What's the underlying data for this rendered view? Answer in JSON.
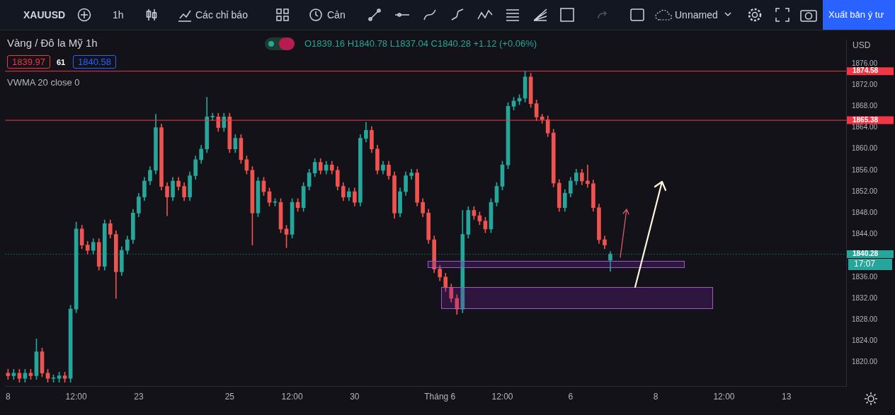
{
  "chart_data": {
    "type": "candlestick",
    "title": "Vàng / Đô la Mỹ  1h",
    "subtitle": "O1839.16 H1840.78 L1837.04 C1840.28 +1.12 (+0.06%)",
    "ylabel": "USD",
    "annotations": [
      "XAUUSD",
      "1h",
      "Các chỉ báo",
      "Cản",
      "Unnamed",
      "Xuất bản ý tư",
      "1839.97",
      "61",
      "1840.58",
      "VWMA 20 close 0",
      "17:07"
    ],
    "categories": [
      "8",
      null,
      null,
      null,
      null,
      null,
      null,
      null,
      null,
      null,
      null,
      null,
      "12:00",
      null,
      null,
      null,
      null,
      null,
      null,
      null,
      null,
      null,
      null,
      "23",
      null,
      null,
      null,
      null,
      null,
      null,
      null,
      null,
      null,
      null,
      null,
      null,
      null,
      null,
      null,
      "25",
      null,
      null,
      null,
      null,
      null,
      null,
      null,
      null,
      null,
      null,
      "12:00",
      null,
      null,
      null,
      null,
      null,
      null,
      null,
      null,
      null,
      null,
      "30",
      null,
      null,
      null,
      null,
      null,
      null,
      null,
      null,
      null,
      null,
      null,
      null,
      null,
      null,
      "Tháng 6",
      null,
      null,
      null,
      null,
      null,
      null,
      null,
      null,
      null,
      null,
      "12:00",
      null,
      null,
      null,
      null,
      null,
      null,
      null,
      null,
      null,
      null,
      null,
      "6",
      null,
      null,
      null,
      null,
      null,
      null,
      null,
      null,
      null,
      null,
      null,
      null,
      null,
      null,
      "8",
      null,
      null,
      null,
      null,
      null,
      null,
      null,
      null,
      null,
      null,
      null,
      "12:00",
      null,
      null,
      null,
      null,
      null,
      null,
      null,
      null,
      null,
      null,
      "13",
      null,
      null,
      null,
      null,
      null,
      null,
      null,
      null,
      null,
      null
    ],
    "ohlc": [
      [
        1818,
        1818.7,
        1816.8,
        1817.5
      ],
      [
        1817.5,
        1818.7,
        1816.8,
        1818
      ],
      [
        1818,
        1818.7,
        1816.3,
        1817
      ],
      [
        1817,
        1818.7,
        1816.3,
        1818
      ],
      [
        1818,
        1818.7,
        1816.8,
        1817.5
      ],
      [
        1817.5,
        1824.4,
        1816.8,
        1822
      ],
      [
        1822,
        1822.7,
        1817.3,
        1818
      ],
      [
        1818,
        1818.7,
        1816.3,
        1817
      ],
      [
        1817,
        1817.7,
        1816.3,
        1817
      ],
      [
        1817,
        1818.2,
        1816.3,
        1817.5
      ],
      [
        1817.5,
        1818.2,
        1816.3,
        1817
      ],
      [
        1817,
        1830.7,
        1816.3,
        1830
      ],
      [
        1830,
        1846.3,
        1829.3,
        1845
      ],
      [
        1845,
        1845.7,
        1841.3,
        1842
      ],
      [
        1842,
        1842.7,
        1840.3,
        1841
      ],
      [
        1841,
        1843.2,
        1840.3,
        1842.5
      ],
      [
        1842.5,
        1843.2,
        1837.3,
        1838
      ],
      [
        1838,
        1846.7,
        1837.3,
        1846
      ],
      [
        1846,
        1846.7,
        1843.3,
        1844
      ],
      [
        1844,
        1844.7,
        1832,
        1837
      ],
      [
        1837,
        1841.7,
        1836.3,
        1841
      ],
      [
        1841,
        1843.7,
        1840.3,
        1843
      ],
      [
        1843,
        1848.7,
        1842.3,
        1848
      ],
      [
        1848,
        1851.7,
        1847.3,
        1851
      ],
      [
        1851,
        1854.7,
        1850.3,
        1854
      ],
      [
        1854,
        1856.7,
        1853.3,
        1856
      ],
      [
        1856,
        1866.5,
        1855.3,
        1864
      ],
      [
        1864,
        1864.7,
        1852.3,
        1853
      ],
      [
        1853,
        1853.7,
        1847.5,
        1851
      ],
      [
        1851,
        1854.7,
        1850.3,
        1854
      ],
      [
        1854,
        1854.7,
        1852.3,
        1853
      ],
      [
        1853,
        1853.7,
        1850.3,
        1851
      ],
      [
        1851,
        1855.7,
        1850.3,
        1855
      ],
      [
        1855,
        1858.7,
        1854.3,
        1858
      ],
      [
        1858,
        1860.7,
        1857.3,
        1860
      ],
      [
        1860,
        1869.7,
        1859.3,
        1866
      ],
      [
        1866,
        1866.7,
        1865.3,
        1866
      ],
      [
        1866,
        1866.7,
        1863.3,
        1864
      ],
      [
        1864,
        1866.7,
        1863.3,
        1866
      ],
      [
        1866,
        1866.7,
        1859.3,
        1860
      ],
      [
        1860,
        1862.7,
        1859.3,
        1862
      ],
      [
        1862,
        1862.7,
        1857.3,
        1858
      ],
      [
        1858,
        1858.7,
        1855.3,
        1856
      ],
      [
        1856,
        1856.7,
        1842,
        1848
      ],
      [
        1848,
        1854.7,
        1847.3,
        1854
      ],
      [
        1854,
        1854.7,
        1851.3,
        1852
      ],
      [
        1852,
        1852.7,
        1849.3,
        1850
      ],
      [
        1850,
        1850.7,
        1849.3,
        1850
      ],
      [
        1850,
        1850.7,
        1844.3,
        1845
      ],
      [
        1845,
        1845.7,
        1841.5,
        1844
      ],
      [
        1844,
        1850.7,
        1843.3,
        1850
      ],
      [
        1850,
        1850.7,
        1848.3,
        1849
      ],
      [
        1849,
        1853.7,
        1848.3,
        1853
      ],
      [
        1853,
        1856.2,
        1852.3,
        1855.5
      ],
      [
        1855.5,
        1858.2,
        1854.8,
        1857.5
      ],
      [
        1857.5,
        1858.2,
        1855.3,
        1856
      ],
      [
        1856,
        1857.7,
        1855.3,
        1857
      ],
      [
        1857,
        1857.7,
        1855.3,
        1856
      ],
      [
        1856,
        1856.7,
        1852.3,
        1853
      ],
      [
        1853,
        1853.7,
        1850.3,
        1851
      ],
      [
        1851,
        1852.7,
        1850.3,
        1852
      ],
      [
        1852,
        1852.7,
        1849.3,
        1850
      ],
      [
        1850,
        1862.7,
        1849.3,
        1862
      ],
      [
        1862,
        1865,
        1861.3,
        1863.5
      ],
      [
        1863.5,
        1864.2,
        1859.3,
        1860
      ],
      [
        1860,
        1860.7,
        1855.3,
        1856
      ],
      [
        1856,
        1857.7,
        1855.3,
        1857
      ],
      [
        1857,
        1857.7,
        1854.3,
        1855
      ],
      [
        1855,
        1855.7,
        1847,
        1848
      ],
      [
        1848,
        1852.7,
        1847.3,
        1852
      ],
      [
        1852,
        1855.7,
        1851.3,
        1855
      ],
      [
        1855,
        1856.2,
        1854.3,
        1855.5
      ],
      [
        1855.5,
        1856.2,
        1849.3,
        1850
      ],
      [
        1850,
        1850.7,
        1847.3,
        1848
      ],
      [
        1848,
        1848.7,
        1842.3,
        1843
      ],
      [
        1843,
        1843.7,
        1836.8,
        1837.5
      ],
      [
        1837.5,
        1838.2,
        1835.3,
        1836
      ],
      [
        1836,
        1836.7,
        1833.3,
        1834
      ],
      [
        1834,
        1834.7,
        1831.3,
        1832
      ],
      [
        1832,
        1832.7,
        1829,
        1830
      ],
      [
        1830,
        1848.5,
        1829.3,
        1844
      ],
      [
        1844,
        1849.2,
        1843.3,
        1848.5
      ],
      [
        1848.5,
        1849.2,
        1846.8,
        1847.5
      ],
      [
        1847.5,
        1848.2,
        1845.8,
        1846.5
      ],
      [
        1846.5,
        1847.2,
        1844.3,
        1845
      ],
      [
        1845,
        1850.7,
        1844.3,
        1850
      ],
      [
        1850,
        1853.7,
        1849.3,
        1853
      ],
      [
        1853,
        1857.7,
        1852.3,
        1857
      ],
      [
        1857,
        1868.7,
        1856.3,
        1868
      ],
      [
        1868,
        1869.7,
        1867.3,
        1869
      ],
      [
        1869,
        1870.2,
        1868.3,
        1869.5
      ],
      [
        1869.5,
        1874.58,
        1868.8,
        1873.5
      ],
      [
        1873.5,
        1874.2,
        1867.8,
        1868.5
      ],
      [
        1868.5,
        1869.2,
        1865.3,
        1866
      ],
      [
        1866,
        1866.5,
        1864.8,
        1865.5
      ],
      [
        1865.5,
        1866.2,
        1862.3,
        1863
      ],
      [
        1863,
        1863.7,
        1852.9,
        1853.6
      ],
      [
        1853.6,
        1854.3,
        1848.3,
        1849
      ],
      [
        1849,
        1852.4,
        1848.3,
        1851.7
      ],
      [
        1851.7,
        1854.7,
        1851,
        1854
      ],
      [
        1854,
        1856.2,
        1853.3,
        1855.5
      ],
      [
        1855.5,
        1856.2,
        1853.3,
        1854
      ],
      [
        1854,
        1857,
        1852.8,
        1853.5
      ],
      [
        1853.5,
        1854.2,
        1848.3,
        1849
      ],
      [
        1849,
        1849.7,
        1842.3,
        1843
      ],
      [
        1843,
        1843.7,
        1841.3,
        1842
      ],
      [
        1839.16,
        1840.78,
        1837.04,
        1840.28
      ],
      null,
      null,
      null,
      null,
      null,
      null,
      null,
      null,
      null,
      null,
      null,
      null,
      null,
      null,
      null,
      null,
      null,
      null,
      null,
      null,
      null,
      null,
      null,
      null,
      null,
      null,
      null,
      null,
      null,
      null,
      null,
      null,
      null,
      null,
      null,
      null,
      null,
      null,
      null,
      null,
      null
    ],
    "ylim": [
      1815.5,
      1880.5
    ],
    "yticks": [
      {
        "value": 1820,
        "label": "1820.00"
      },
      {
        "value": 1824,
        "label": "1824.00"
      },
      {
        "value": 1828,
        "label": "1828.00"
      },
      {
        "value": 1832,
        "label": "1832.00"
      },
      {
        "value": 1836,
        "label": "1836.00"
      },
      {
        "value": 1844,
        "label": "1844.00"
      },
      {
        "value": 1848,
        "label": "1848.00"
      },
      {
        "value": 1852,
        "label": "1852.00"
      },
      {
        "value": 1856,
        "label": "1856.00"
      },
      {
        "value": 1860,
        "label": "1860.00"
      },
      {
        "value": 1864,
        "label": "1864.00"
      },
      {
        "value": 1868,
        "label": "1868.00"
      },
      {
        "value": 1872,
        "label": "1872.00"
      },
      {
        "value": 1876,
        "label": "1876.00"
      }
    ],
    "ref_lines": [
      {
        "axis": "y",
        "value": 1874.58,
        "label": "1874.58",
        "color": "#f23645"
      },
      {
        "axis": "y",
        "value": 1865.38,
        "label": "1865.38",
        "color": "#f23645"
      },
      {
        "axis": "y",
        "value": 1840.28,
        "label": "1840.28",
        "color": "#26a69a",
        "line_style": "dotted"
      }
    ],
    "grid": false,
    "legend": false
  }
}
